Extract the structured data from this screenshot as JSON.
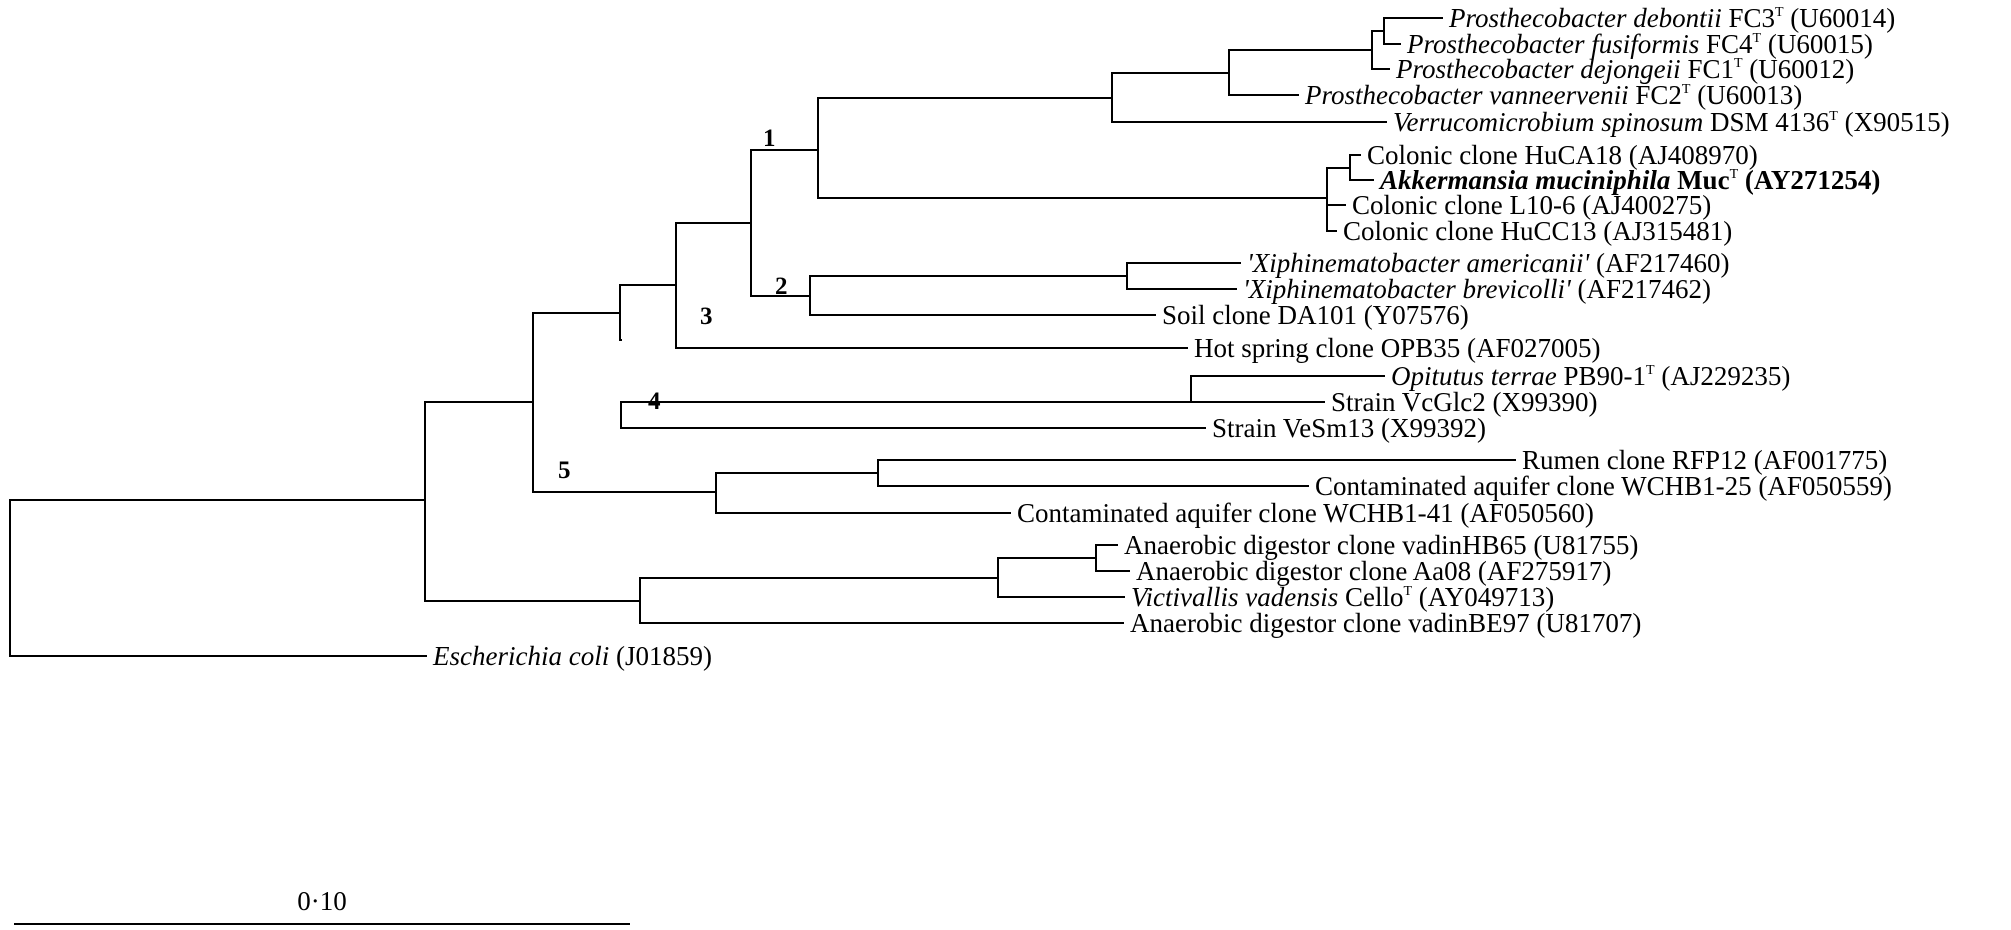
{
  "diagram_type": "phylogenetic tree",
  "scale_bar": {
    "label": "0·10",
    "value": 0.1
  },
  "clusters": [
    {
      "id": "1",
      "label": "1"
    },
    {
      "id": "2",
      "label": "2"
    },
    {
      "id": "3",
      "label": "3"
    },
    {
      "id": "4",
      "label": "4"
    },
    {
      "id": "5",
      "label": "5"
    }
  ],
  "leaves": [
    {
      "id": "debontii",
      "parts": [
        {
          "t": "Prosthecobacter debontii",
          "i": true
        },
        {
          "t": " FC3"
        },
        {
          "t": "T",
          "sup": true
        },
        {
          "t": " (U60014)"
        }
      ]
    },
    {
      "id": "fusiformis",
      "parts": [
        {
          "t": "Prosthecobacter fusiformis",
          "i": true
        },
        {
          "t": " FC4"
        },
        {
          "t": "T",
          "sup": true
        },
        {
          "t": " (U60015)"
        }
      ]
    },
    {
      "id": "dejongeii",
      "parts": [
        {
          "t": "Prosthecobacter dejongeii",
          "i": true
        },
        {
          "t": " FC1"
        },
        {
          "t": "T",
          "sup": true
        },
        {
          "t": " (U60012)"
        }
      ]
    },
    {
      "id": "vanneervenii",
      "parts": [
        {
          "t": "Prosthecobacter vanneervenii",
          "i": true
        },
        {
          "t": " FC2"
        },
        {
          "t": "T",
          "sup": true
        },
        {
          "t": " (U60013)"
        }
      ]
    },
    {
      "id": "verrucomicrobium",
      "parts": [
        {
          "t": "Verrucomicrobium spinosum",
          "i": true
        },
        {
          "t": "  DSM 4136"
        },
        {
          "t": "T",
          "sup": true
        },
        {
          "t": " (X90515)"
        }
      ]
    },
    {
      "id": "huca18",
      "parts": [
        {
          "t": "Colonic clone HuCA18 (AJ408970)"
        }
      ]
    },
    {
      "id": "akkermansia",
      "parts": [
        {
          "t": "Akkermansia muciniphila",
          "i": true,
          "b": true
        },
        {
          "t": "  Muc",
          "b": true
        },
        {
          "t": "T",
          "sup": true
        },
        {
          "t": " (AY271254)",
          "b": true
        }
      ]
    },
    {
      "id": "l10_6",
      "parts": [
        {
          "t": "Colonic clone L10-6 (AJ400275)"
        }
      ]
    },
    {
      "id": "hucc13",
      "parts": [
        {
          "t": "Colonic clone HuCC13 (AJ315481)"
        }
      ]
    },
    {
      "id": "x_americanii",
      "parts": [
        {
          "t": "'Xiphinematobacter americanii'",
          "i": true
        },
        {
          "t": " (AF217460)"
        }
      ]
    },
    {
      "id": "x_brevicolli",
      "parts": [
        {
          "t": "'Xiphinematobacter brevicolli'",
          "i": true
        },
        {
          "t": " (AF217462)"
        }
      ]
    },
    {
      "id": "da101",
      "parts": [
        {
          "t": "Soil clone DA101 (Y07576)"
        }
      ]
    },
    {
      "id": "opb35",
      "parts": [
        {
          "t": "Hot spring clone OPB35 (AF027005)"
        }
      ]
    },
    {
      "id": "opitutus",
      "parts": [
        {
          "t": "Opitutus terrae",
          "i": true
        },
        {
          "t": " PB90-1"
        },
        {
          "t": "T",
          "sup": true
        },
        {
          "t": " (AJ229235)"
        }
      ]
    },
    {
      "id": "vcglc2",
      "parts": [
        {
          "t": "Strain VcGlc2 (X99390)"
        }
      ]
    },
    {
      "id": "vesm13",
      "parts": [
        {
          "t": "Strain VeSm13 (X99392)"
        }
      ]
    },
    {
      "id": "rfp12",
      "parts": [
        {
          "t": "Rumen clone RFP12 (AF001775)"
        }
      ]
    },
    {
      "id": "wchb1_25",
      "parts": [
        {
          "t": "Contaminated aquifer clone WCHB1-25 (AF050559)"
        }
      ]
    },
    {
      "id": "wchb1_41",
      "parts": [
        {
          "t": "Contaminated aquifer clone WCHB1-41 (AF050560)"
        }
      ]
    },
    {
      "id": "vadinhb65",
      "parts": [
        {
          "t": "Anaerobic digestor clone vadinHB65 (U81755)"
        }
      ]
    },
    {
      "id": "aa08",
      "parts": [
        {
          "t": "Anaerobic digestor clone Aa08 (AF275917)"
        }
      ]
    },
    {
      "id": "victivallis",
      "parts": [
        {
          "t": "Victivallis vadensis",
          "i": true
        },
        {
          "t": " Cello"
        },
        {
          "t": "T",
          "sup": true
        },
        {
          "t": " (AY049713)"
        }
      ]
    },
    {
      "id": "vadinbe97",
      "parts": [
        {
          "t": "Anaerobic digestor clone vadinBE97 (U81707)"
        }
      ]
    },
    {
      "id": "ecoli",
      "parts": [
        {
          "t": "Escherichia coli",
          "i": true
        },
        {
          "t": " (J01859)"
        }
      ]
    }
  ]
}
